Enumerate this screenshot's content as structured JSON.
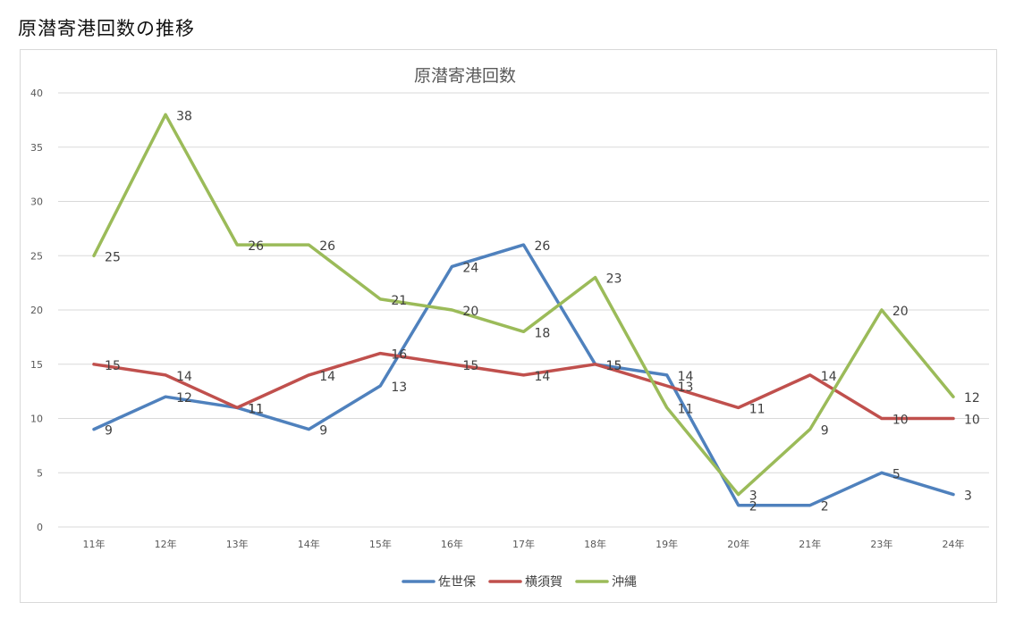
{
  "page": {
    "heading": "原潜寄港回数の推移"
  },
  "chart_data": {
    "type": "line",
    "title": "原潜寄港回数",
    "categories": [
      "11年",
      "12年",
      "13年",
      "14年",
      "15年",
      "16年",
      "17年",
      "18年",
      "19年",
      "20年",
      "21年",
      "23年",
      "24年"
    ],
    "series": [
      {
        "name": "佐世保",
        "color": "#4f81bd",
        "values": [
          9,
          12,
          11,
          9,
          13,
          24,
          26,
          15,
          14,
          2,
          2,
          5,
          3
        ]
      },
      {
        "name": "横須賀",
        "color": "#c0504d",
        "values": [
          15,
          14,
          11,
          14,
          16,
          15,
          14,
          15,
          13,
          11,
          14,
          10,
          10
        ]
      },
      {
        "name": "沖縄",
        "color": "#9bbb59",
        "values": [
          25,
          38,
          26,
          26,
          21,
          20,
          18,
          23,
          11,
          3,
          9,
          20,
          12
        ]
      }
    ],
    "ylim": [
      0,
      40
    ],
    "yticks": [
      0,
      5,
      10,
      15,
      20,
      25,
      30,
      35,
      40
    ],
    "grid": true,
    "legend_position": "bottom",
    "data_labels": true
  }
}
